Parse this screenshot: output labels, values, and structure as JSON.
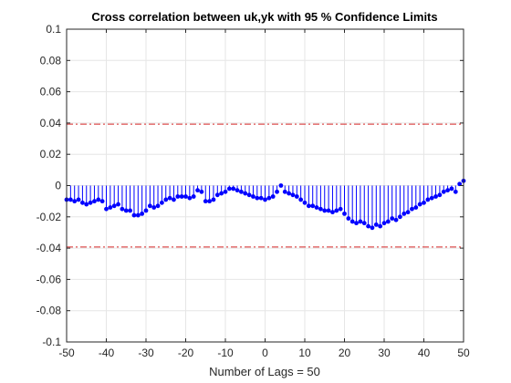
{
  "chart_data": {
    "type": "stem",
    "title": "Cross correlation between uk,yk with 95 % Confidence Limits",
    "xlabel": "Number of Lags = 50",
    "ylabel": "",
    "xlim": [
      -50,
      50
    ],
    "ylim": [
      -0.1,
      0.1
    ],
    "xticks": [
      "-50",
      "-40",
      "-30",
      "-20",
      "-10",
      "0",
      "10",
      "20",
      "30",
      "40",
      "50"
    ],
    "yticks": [
      "-0.1",
      "-0.08",
      "-0.06",
      "-0.04",
      "-0.02",
      "0",
      "0.02",
      "0.04",
      "0.06",
      "0.08",
      "0.1"
    ],
    "grid": true,
    "confidence_limits": [
      0.0393,
      -0.0393
    ],
    "colors": {
      "stem": "#0000ff",
      "confidence": "#d62728",
      "grid": "#e6e6e6"
    },
    "x": [
      -50,
      -49,
      -48,
      -47,
      -46,
      -45,
      -44,
      -43,
      -42,
      -41,
      -40,
      -39,
      -38,
      -37,
      -36,
      -35,
      -34,
      -33,
      -32,
      -31,
      -30,
      -29,
      -28,
      -27,
      -26,
      -25,
      -24,
      -23,
      -22,
      -21,
      -20,
      -19,
      -18,
      -17,
      -16,
      -15,
      -14,
      -13,
      -12,
      -11,
      -10,
      -9,
      -8,
      -7,
      -6,
      -5,
      -4,
      -3,
      -2,
      -1,
      0,
      1,
      2,
      3,
      4,
      5,
      6,
      7,
      8,
      9,
      10,
      11,
      12,
      13,
      14,
      15,
      16,
      17,
      18,
      19,
      20,
      21,
      22,
      23,
      24,
      25,
      26,
      27,
      28,
      29,
      30,
      31,
      32,
      33,
      34,
      35,
      36,
      37,
      38,
      39,
      40,
      41,
      42,
      43,
      44,
      45,
      46,
      47,
      48,
      49,
      50
    ],
    "values": [
      -0.009,
      -0.009,
      -0.01,
      -0.009,
      -0.011,
      -0.012,
      -0.011,
      -0.01,
      -0.009,
      -0.01,
      -0.015,
      -0.014,
      -0.013,
      -0.012,
      -0.015,
      -0.016,
      -0.016,
      -0.019,
      -0.019,
      -0.018,
      -0.016,
      -0.013,
      -0.014,
      -0.013,
      -0.011,
      -0.009,
      -0.008,
      -0.009,
      -0.007,
      -0.007,
      -0.007,
      -0.008,
      -0.007,
      -0.003,
      -0.004,
      -0.01,
      -0.01,
      -0.009,
      -0.006,
      -0.005,
      -0.004,
      -0.002,
      -0.002,
      -0.003,
      -0.004,
      -0.005,
      -0.006,
      -0.007,
      -0.008,
      -0.008,
      -0.009,
      -0.008,
      -0.007,
      -0.004,
      0.0,
      -0.004,
      -0.005,
      -0.006,
      -0.007,
      -0.009,
      -0.011,
      -0.013,
      -0.013,
      -0.014,
      -0.015,
      -0.016,
      -0.016,
      -0.017,
      -0.016,
      -0.015,
      -0.018,
      -0.021,
      -0.023,
      -0.024,
      -0.023,
      -0.024,
      -0.026,
      -0.027,
      -0.025,
      -0.026,
      -0.024,
      -0.023,
      -0.021,
      -0.022,
      -0.02,
      -0.018,
      -0.017,
      -0.015,
      -0.014,
      -0.012,
      -0.011,
      -0.009,
      -0.008,
      -0.007,
      -0.006,
      -0.004,
      -0.003,
      -0.002,
      -0.004,
      0.001,
      0.003
    ]
  }
}
